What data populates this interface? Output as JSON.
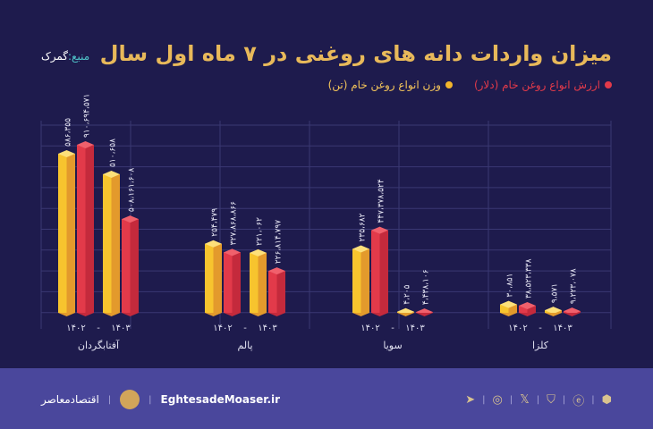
{
  "title": "میزان واردات دانه های روغنی در ۷ ماه اول سال",
  "source": {
    "label": "منبع:",
    "value": "گمرک"
  },
  "footer": {
    "brand": "اقتصادمعاصر",
    "url": "EghtesadeMoaser.ir",
    "social_icons": [
      "telegram-icon",
      "instagram-icon",
      "x-icon",
      "shield-icon",
      "eitaa-icon",
      "rubika-icon"
    ]
  },
  "chart_data": {
    "type": "bar",
    "title": "میزان واردات دانه های روغنی در ۷ ماه اول سال",
    "grid": true,
    "legend_position": "top-right",
    "colors": {
      "weight": "#f2b52c",
      "value": "#e23a4a"
    },
    "categories": [
      "آفتابگردان",
      "پالم",
      "سویا",
      "کلزا"
    ],
    "years": [
      "۱۴۰۲",
      "۱۴۰۳"
    ],
    "year_separator": "-",
    "series": [
      {
        "name": "وزن انواع روغن خام (تن)",
        "key": "weight",
        "values": [
          [
            586355,
            510658
          ],
          [
            254479,
            221062
          ],
          [
            235682,
            4205
          ],
          [
            30851,
            9571
          ]
        ],
        "labels": [
          [
            "۵۸۶،۳۵۵",
            "۵۱۰،۶۵۸"
          ],
          [
            "۲۵۴،۴۷۹",
            "۲۲۱،۰۶۲"
          ],
          [
            "۲۳۵،۶۸۲",
            "۴،۲۰۵"
          ],
          [
            "۳۰،۸۵۱",
            "۹،۵۷۱"
          ]
        ]
      },
      {
        "name": "ارزش انواع روغن خام (دلار)",
        "key": "value",
        "values": [
          [
            910694571,
            508161608
          ],
          [
            327868866,
            226814797
          ],
          [
            447378524,
            4438106
          ],
          [
            38523338,
            9223078
          ]
        ],
        "labels": [
          [
            "۹۱۰،۶۹۴،۵۷۱",
            "۵۰۸،۱۶۱،۶۰۸"
          ],
          [
            "۳۲۷،۸۶۸،۸۶۶",
            "۲۲۶،۸۱۴،۷۹۷"
          ],
          [
            "۴۴۷،۳۷۸،۵۲۴",
            "۴،۴۳۸،۱۰۶"
          ],
          [
            "۳۸،۵۲۳،۳۳۸",
            "۹،۲۲۳،۰۷۸"
          ]
        ]
      }
    ]
  }
}
